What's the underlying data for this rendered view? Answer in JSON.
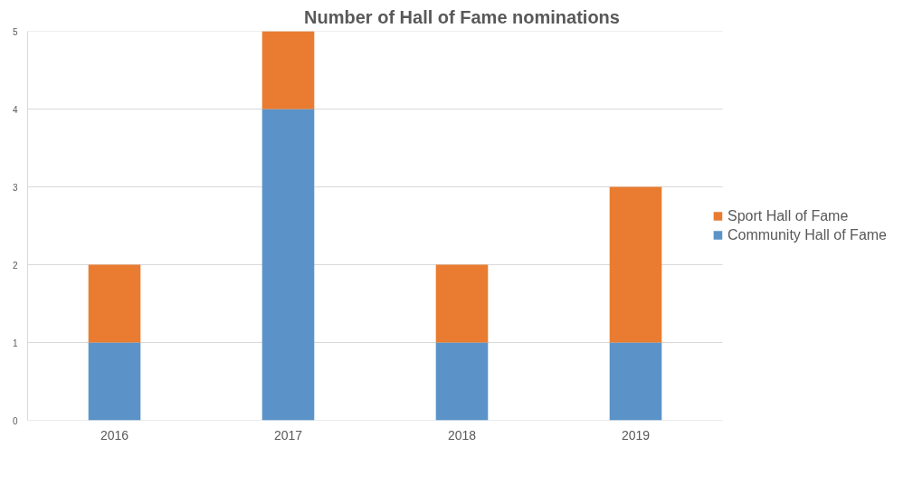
{
  "chart_data": {
    "type": "bar",
    "title": "Number of Hall of Fame nominations",
    "categories": [
      "2016",
      "2017",
      "2018",
      "2019"
    ],
    "stacked": true,
    "series": [
      {
        "name": "Community Hall of Fame",
        "color": "#5b93c9",
        "values": [
          1,
          4,
          1,
          1
        ]
      },
      {
        "name": "Sport Hall of Fame",
        "color": "#e97c30",
        "values": [
          1,
          1,
          1,
          2
        ]
      }
    ],
    "ylim": [
      0,
      5
    ],
    "yticks": [
      0,
      1,
      2,
      3,
      4,
      5
    ],
    "grid": "y",
    "legend": "right"
  }
}
